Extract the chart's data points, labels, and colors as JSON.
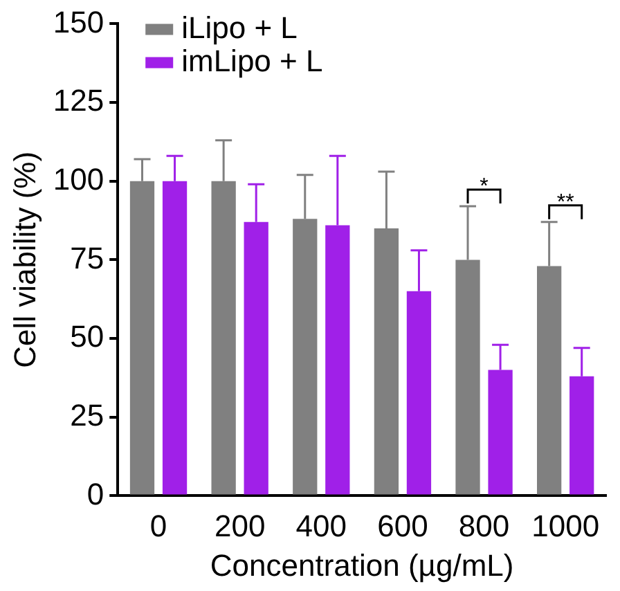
{
  "chart_data": {
    "type": "bar",
    "xlabel": "Concentration (µg/mL)",
    "ylabel": "Cell viability (%)",
    "categories": [
      "0",
      "200",
      "400",
      "600",
      "800",
      "1000"
    ],
    "series": [
      {
        "name": "iLipo + L",
        "color": "#808080",
        "values": [
          100,
          100,
          88,
          85,
          75,
          73
        ],
        "errors": [
          [
            100,
            107
          ],
          [
            100,
            113
          ],
          [
            88,
            102
          ],
          [
            85,
            103
          ],
          [
            75,
            92
          ],
          [
            73,
            87
          ]
        ]
      },
      {
        "name": "imLipo + L",
        "color": "#a020e8",
        "values": [
          100,
          87,
          86,
          65,
          40,
          38
        ],
        "errors": [
          [
            100,
            108
          ],
          [
            87,
            99
          ],
          [
            86,
            108
          ],
          [
            65,
            78
          ],
          [
            40,
            48
          ],
          [
            38,
            47
          ]
        ]
      }
    ],
    "ylim": [
      0,
      150
    ],
    "yticks": [
      0,
      25,
      50,
      75,
      100,
      125,
      150
    ],
    "grid": false,
    "legend": "top left",
    "annotations": [
      "*",
      "**"
    ]
  }
}
